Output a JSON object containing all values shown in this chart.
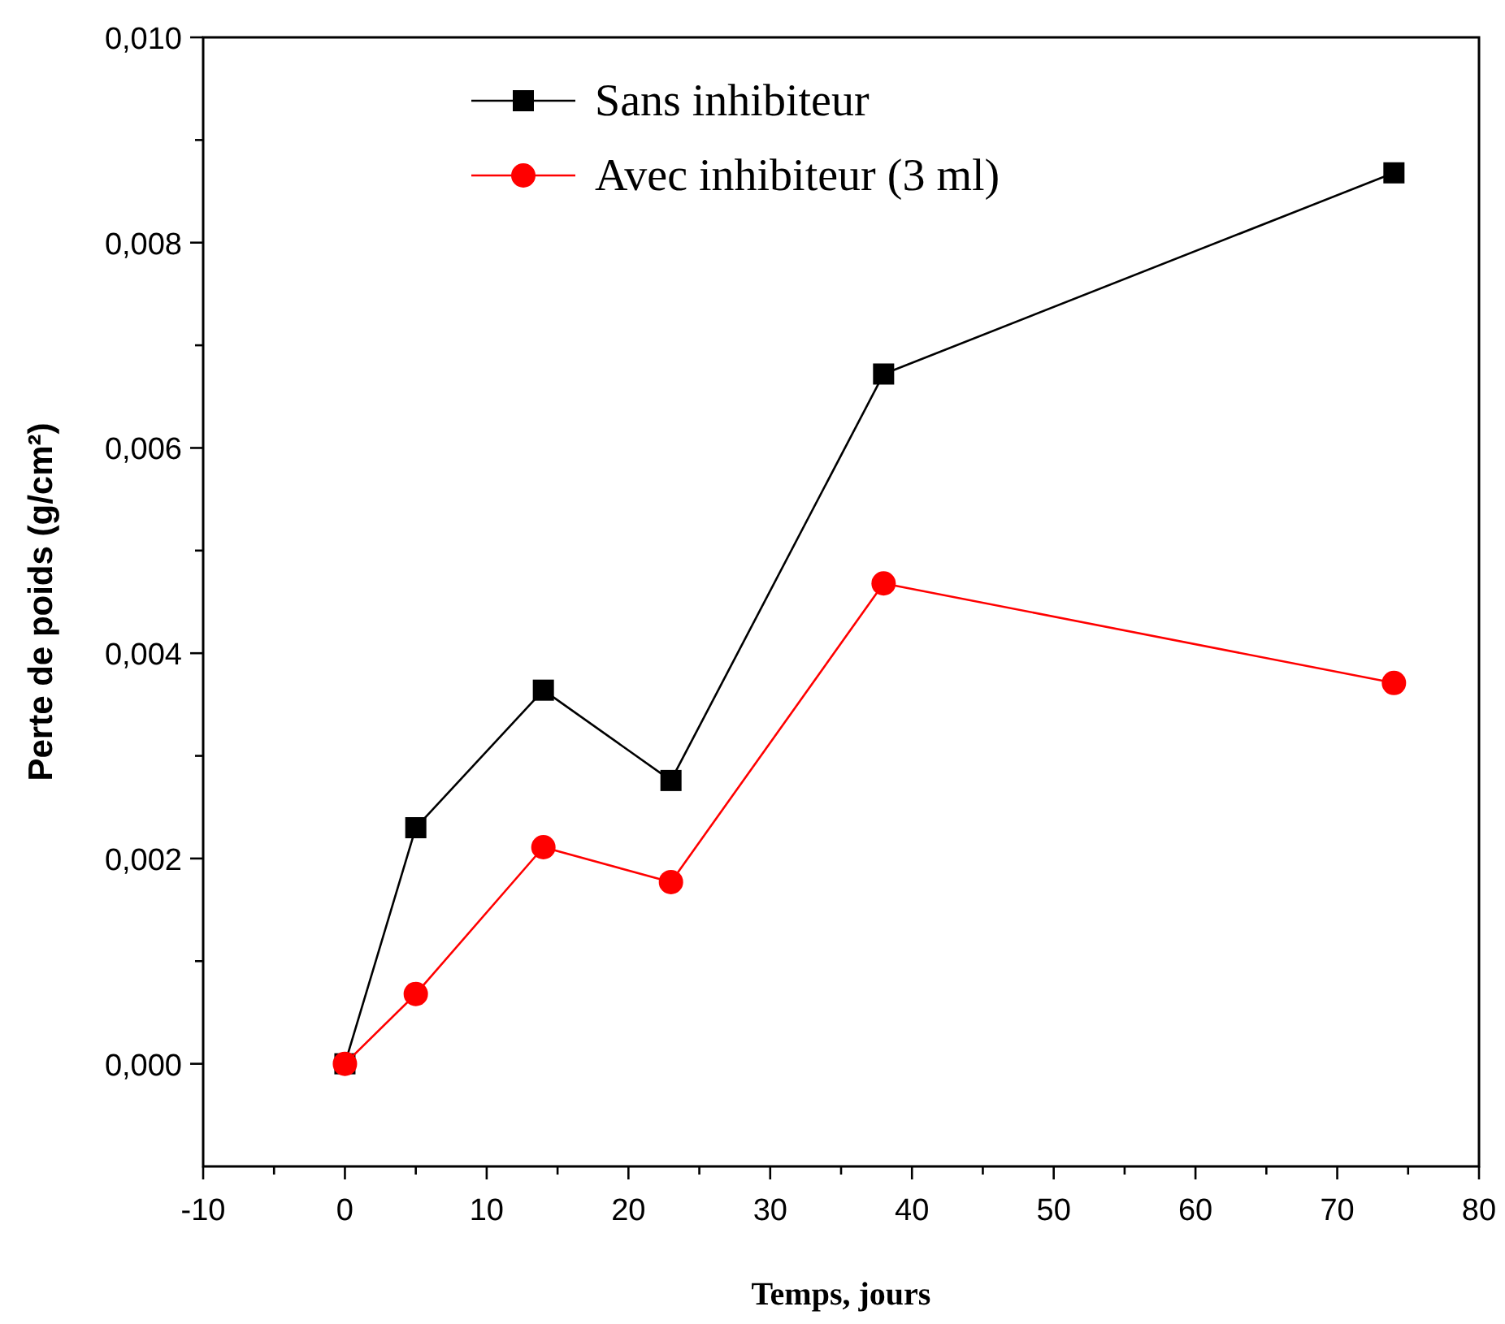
{
  "chart_data": {
    "type": "line",
    "xlabel": "Temps, jours",
    "ylabel": "Perte de poids (g/cm²)",
    "x": [
      0,
      5,
      14,
      23,
      38,
      74
    ],
    "series": [
      {
        "name": "Sans inhibiteur",
        "color": "#000000",
        "marker": "square",
        "values": [
          0,
          0.0023,
          0.00364,
          0.00276,
          0.00672,
          0.00868
        ]
      },
      {
        "name": "Avec inhibiteur (3 ml)",
        "color": "#ff0000",
        "marker": "circle",
        "values": [
          0,
          0.00068,
          0.00211,
          0.00177,
          0.00468,
          0.00371
        ]
      }
    ],
    "xlim": [
      -10,
      80
    ],
    "xticks": [
      -10,
      0,
      10,
      20,
      30,
      40,
      50,
      60,
      70,
      80
    ],
    "ylim": [
      -0.001,
      0.01
    ],
    "yticks": [
      {
        "value": 0,
        "label": "0,000"
      },
      {
        "value": 0.002,
        "label": "0,002"
      },
      {
        "value": 0.004,
        "label": "0,004"
      },
      {
        "value": 0.006,
        "label": "0,006"
      },
      {
        "value": 0.008,
        "label": "0,008"
      },
      {
        "value": 0.01,
        "label": "0,010"
      }
    ],
    "grid": false,
    "legend": "top",
    "line_style": "solid"
  }
}
